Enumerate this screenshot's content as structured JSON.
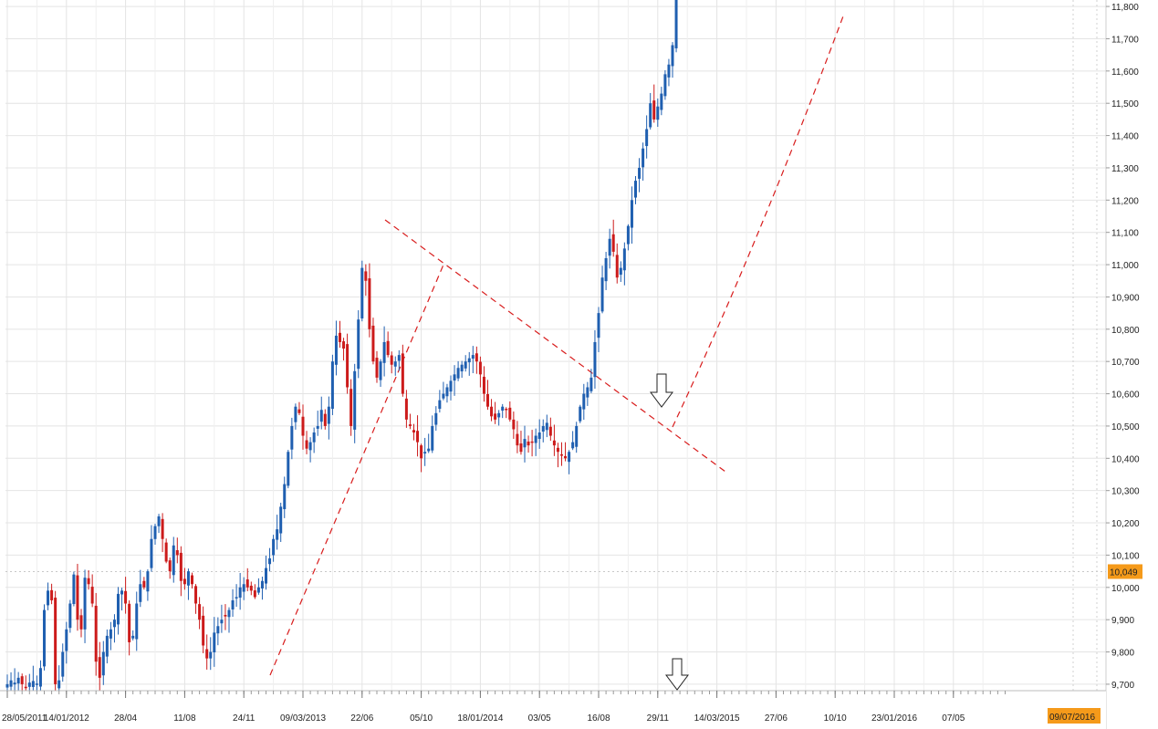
{
  "chart_data": {
    "type": "candlestick",
    "title": "",
    "xlabel": "",
    "ylabel": "",
    "ylim": [
      9680,
      11820
    ],
    "grid": true,
    "y_ticks": [
      "9,700",
      "9,800",
      "9,900",
      "10,000",
      "10,100",
      "10,200",
      "10,300",
      "10,400",
      "10,500",
      "10,600",
      "10,700",
      "10,800",
      "10,900",
      "11,000",
      "11,100",
      "11,200",
      "11,300",
      "11,400",
      "11,500",
      "11,600",
      "11,700",
      "11,800"
    ],
    "y_tick_values": [
      9700,
      9800,
      9900,
      10000,
      10100,
      10200,
      10300,
      10400,
      10500,
      10600,
      10700,
      10800,
      10900,
      11000,
      11100,
      11200,
      11300,
      11400,
      11500,
      11600,
      11700,
      11800
    ],
    "x_ticks": [
      "28/05/2011",
      "14/01/2012",
      "28/04",
      "11/08",
      "24/11",
      "09/03/2013",
      "22/06",
      "05/10",
      "18/01/2014",
      "03/05",
      "16/08",
      "29/11",
      "14/03/2015",
      "27/06",
      "10/10",
      "23/01/2016",
      "07/05"
    ],
    "x_tick_index": [
      0,
      16,
      32,
      48,
      64,
      80,
      96,
      112,
      128,
      144,
      160,
      176,
      192,
      208,
      224,
      240,
      256
    ],
    "current_price": {
      "label": "10,049",
      "value": 10049,
      "color": "#f59a1a"
    },
    "current_date": {
      "label": "09/07/2016",
      "color": "#f59a1a"
    },
    "colors": {
      "up": "#1f5fb0",
      "down": "#cc1b1b",
      "trendline": "#d81c1c",
      "grid": "#e4e4e4"
    },
    "closes": [
      9700,
      9712,
      9705,
      9720,
      9700,
      9690,
      9705,
      9710,
      9702,
      9750,
      9930,
      9990,
      9960,
      9700,
      9712,
      9800,
      9870,
      9950,
      10040,
      9900,
      9870,
      10030,
      10010,
      9950,
      9770,
      9720,
      9800,
      9850,
      9870,
      9900,
      9980,
      9990,
      9950,
      9830,
      9850,
      9950,
      10010,
      10000,
      10050,
      10150,
      10190,
      10220,
      10150,
      10080,
      10050,
      10130,
      10100,
      10020,
      10010,
      10050,
      10010,
      9950,
      9900,
      9820,
      9780,
      9800,
      9860,
      9880,
      9900,
      9910,
      9930,
      9960,
      9970,
      10000,
      10010,
      10000,
      9990,
      9970,
      10000,
      10020,
      10060,
      10090,
      10150,
      10180,
      10250,
      10320,
      10420,
      10500,
      10560,
      10540,
      10470,
      10430,
      10450,
      10480,
      10500,
      10550,
      10500,
      10560,
      10700,
      10780,
      10760,
      10740,
      10620,
      10500,
      10670,
      10830,
      10990,
      10950,
      10800,
      10700,
      10650,
      10700,
      10760,
      10720,
      10690,
      10700,
      10720,
      10600,
      10520,
      10500,
      10480,
      10450,
      10400,
      10420,
      10430,
      10500,
      10540,
      10580,
      10600,
      10620,
      10640,
      10660,
      10680,
      10690,
      10700,
      10710,
      10720,
      10700,
      10660,
      10600,
      10560,
      10530,
      10520,
      10540,
      10560,
      10550,
      10520,
      10490,
      10440,
      10420,
      10460,
      10440,
      10450,
      10470,
      10480,
      10500,
      10510,
      10470,
      10440,
      10420,
      10410,
      10400,
      10420,
      10450,
      10500,
      10560,
      10600,
      10620,
      10650,
      10760,
      10850,
      10960,
      11020,
      11080,
      11040,
      10960,
      10990,
      11050,
      11120,
      11200,
      11260,
      11300,
      11360,
      11420,
      11500,
      11450,
      11490,
      11530,
      11590,
      11620,
      11680,
      11820
    ]
  }
}
